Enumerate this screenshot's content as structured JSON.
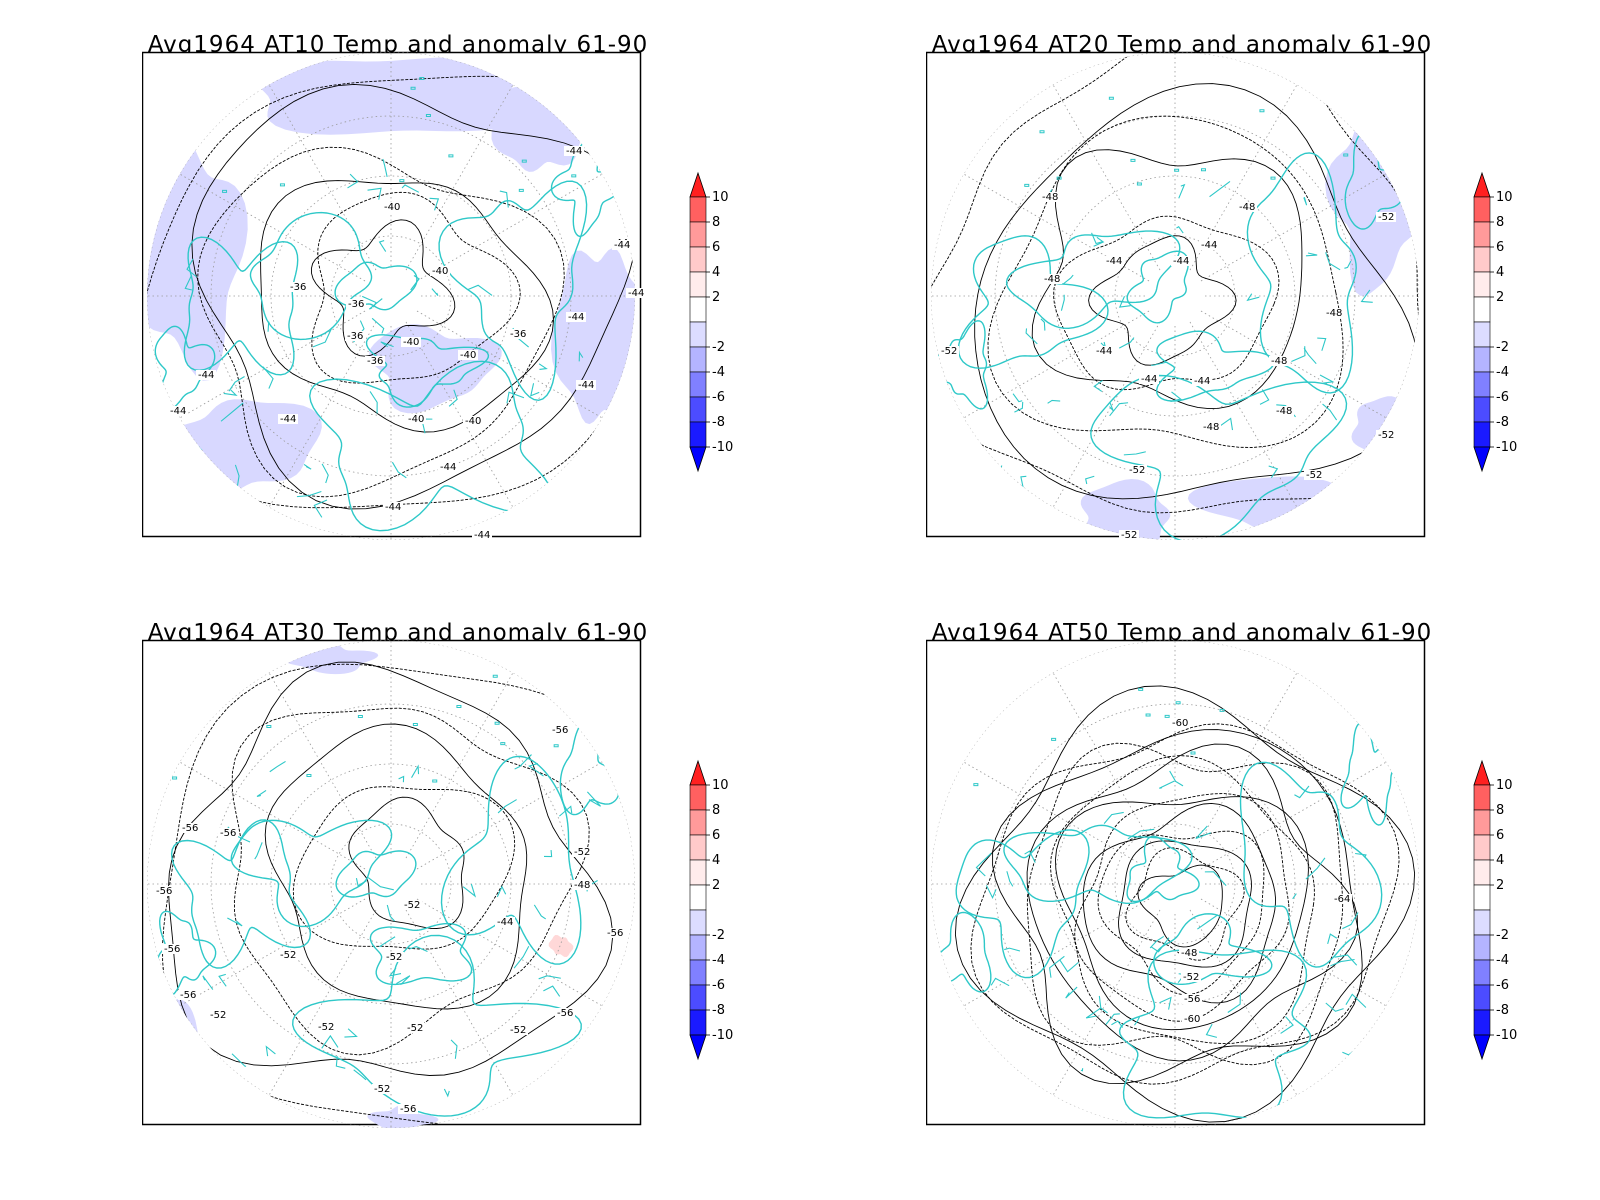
{
  "panels": [
    {
      "title": "Avg1964 AT10 Temp and anomaly 61-90",
      "contour_labels": [
        "-36",
        "-36",
        "-36",
        "-36",
        "-40",
        "-40",
        "-40",
        "-40",
        "-40",
        "-40",
        "-44",
        "-44",
        "-44",
        "-44",
        "-44",
        "-44",
        "-44",
        "-44",
        "-44",
        "-44",
        "-36",
        "-44",
        "-44"
      ],
      "anomaly_level": -2
    },
    {
      "title": "Avg1964 AT20 Temp and anomaly 61-90",
      "contour_labels": [
        "-48",
        "-48",
        "-48",
        "-44",
        "-44",
        "-44",
        "-44",
        "-44",
        "-44",
        "-48",
        "-48",
        "-48",
        "-48",
        "-52",
        "-52",
        "-52",
        "-52",
        "-52",
        "-52"
      ],
      "anomaly_level": -2
    },
    {
      "title": "Avg1964 AT30 Temp and anomaly 61-90",
      "contour_labels": [
        "-56",
        "-56",
        "-52",
        "-52",
        "-44",
        "-48",
        "-52",
        "-52",
        "-52",
        "-52",
        "-52",
        "-56",
        "-56",
        "-56",
        "-56",
        "-56",
        "-56",
        "-52",
        "-52",
        "-56"
      ],
      "anomaly_level": -2
    },
    {
      "title": "Avg1964 AT50 Temp and anomaly 61-90",
      "contour_labels": [
        "-60",
        "-48",
        "-52",
        "-56",
        "-60",
        "-64"
      ],
      "anomaly_level": 0
    }
  ],
  "colorbar": {
    "labels": [
      "10",
      "8",
      "6",
      "4",
      "2",
      "-2",
      "-4",
      "-6",
      "-8",
      "-10"
    ],
    "colors": [
      "#ff2020",
      "#ff6060",
      "#ff9a9a",
      "#ffcaca",
      "#ffecec",
      "#ffffff",
      "#dcdcff",
      "#b4b4ff",
      "#8080ff",
      "#4c4cff",
      "#1a1aff",
      "#0000ff"
    ]
  },
  "colors": {
    "coast": "#2ec8c8",
    "contour": "#000000",
    "grid": "#9a9a9a",
    "anomaly_cold": "#d8d8ff",
    "anomaly_warm": "#ffd8d8"
  }
}
